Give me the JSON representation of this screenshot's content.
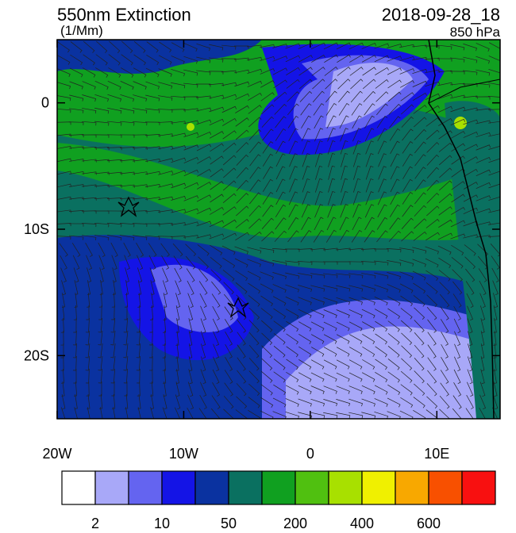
{
  "map": {
    "title": "550nm Extinction",
    "units": "(1/Mm)",
    "time": "2018-09-28_18",
    "level": "850 hPa",
    "xlim": [
      -20,
      15
    ],
    "ylim": [
      -25,
      5
    ],
    "xticks": [
      {
        "value": -20,
        "label": "20W"
      },
      {
        "value": -10,
        "label": "10W"
      },
      {
        "value": 0,
        "label": "0"
      },
      {
        "value": 10,
        "label": "10E"
      }
    ],
    "yticks": [
      {
        "value": 0,
        "label": "0"
      },
      {
        "value": -10,
        "label": "10S"
      },
      {
        "value": -20,
        "label": "20S"
      }
    ],
    "colorbar": {
      "colors": [
        "#ffffff",
        "#a8a8f8",
        "#6464f0",
        "#1414e6",
        "#0a32a0",
        "#0a7060",
        "#10a020",
        "#50c010",
        "#a8e000",
        "#f0f000",
        "#f8a800",
        "#f85000",
        "#f81010"
      ],
      "labels": [
        "2",
        "10",
        "50",
        "200",
        "400",
        "600"
      ]
    }
  }
}
